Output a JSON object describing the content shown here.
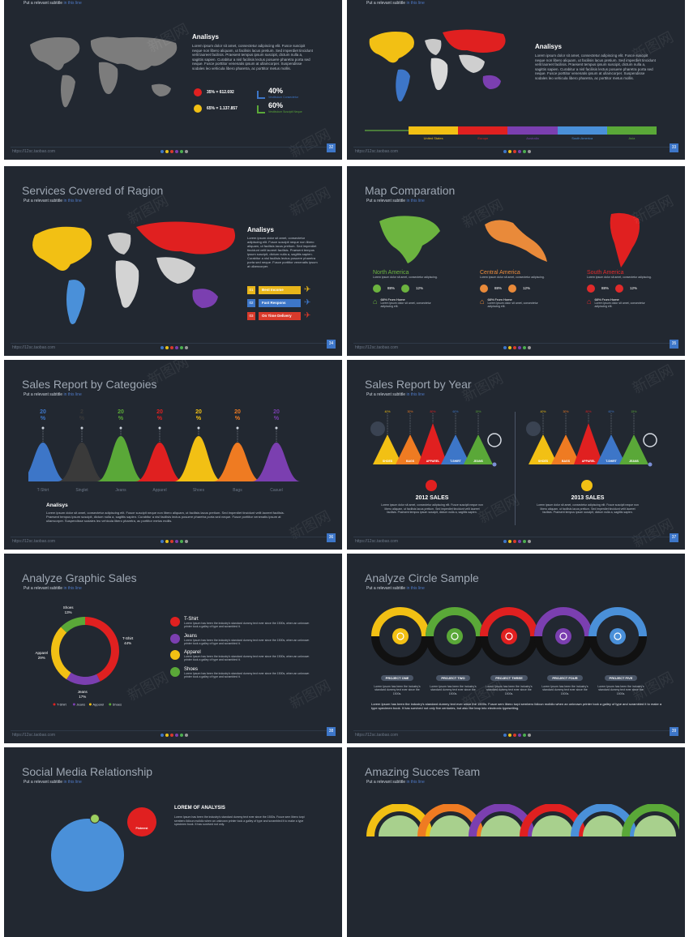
{
  "common": {
    "subtitle_prefix": "Put a relevant subtitle",
    "subtitle_suffix": "in this line",
    "footer_url": "https://12sc.taobao.com",
    "footer_dot_colors": [
      "#3d76c8",
      "#e8c21a",
      "#d93a2b",
      "#7b3fb0",
      "#4caf50",
      "#999999"
    ],
    "watermark": "新图网",
    "accent": "#3d76c8"
  },
  "slides": [
    {
      "page": "32",
      "analysis_title": "Analisys",
      "body": "Lorem ipsum dolor sit amet, consectetur adipiscing elit. Fusce suscipit neque non libero aliquam, ut facilisis lacus pretium. Sed imperdiet tincidunt velit laoreet facilisis. Praesent tempus ipsum suscipit, dictum nulla a, sagittis sapien. Curabitur a nisl facilisis lectus posuere pharetra porta sed neque. Fusce porttitor venenatis ipsum at ullamcorper. Suspendisse sodales leo vehicula libero pharetra, ac porttitor metus mollis.",
      "stat_a": "35% = 612.692",
      "stat_b": "65% = 1.137.857",
      "pct_a": "40%",
      "pct_a_label": "Vestibulum Consectetur",
      "pct_b": "60%",
      "pct_b_label": "Vestibulum Suscipit Neque"
    },
    {
      "page": "33",
      "analysis_title": "Analisys",
      "body": "Lorem ipsum dolor sit amet, consectetur adipiscing elit. Fusce suscipit neque non libero aliquam, ut facilisis lacus pretium. Sed imperdiet tincidunt velit laoreet facilisis. Praesent tempus ipsum suscipit, dictum nulla a, sagittis sapien. Curabitur a nisl facilisis lectus posuere pharetra porta sed neque. Fusce porttitor venenatis ipsum at ullamcorper. Suspendisse sodales leo vehicula libero pharetra, ac porttitor metus mollis.",
      "regions": [
        "United States",
        "Europe",
        "Australia",
        "South America",
        "Asia"
      ]
    },
    {
      "page": "34",
      "title": "Services Covered of Ragion",
      "analysis_title": "Analisys",
      "body": "Lorem ipsum dolor sit amet, consectetur adipiscing elit. Fusce suscipit neque non libero aliquam, ut facilisis lacus pretium. Sed imperdiet tincidunt velit laoreet facilisis. Praesent tempus ipsum suscipit, dictum nulla a, sagittis sapien. Curabitur a nisl facilisis lectus posuere pharetra porta sed neque. Fusce porttitor venenatis ipsum at ullamcorper.",
      "items": [
        {
          "num": "01",
          "label": "Best Income",
          "color": "#e8b51a"
        },
        {
          "num": "02",
          "label": "Fast Respons",
          "color": "#3d76c8"
        },
        {
          "num": "03",
          "label": "On Time Delivery",
          "color": "#d93a2b"
        }
      ]
    },
    {
      "page": "35",
      "title": "Map Comparation",
      "regions": [
        {
          "name": "North America",
          "color": "#6cb33f",
          "desc": "Lorem ipsum dolor sit amet, consectetur adipiscing.",
          "p1": "88%",
          "p2": "12%",
          "note": "68% From Home",
          "note_desc": "Lorem ipsum dolor sit amet, consectetur adipiscing elit."
        },
        {
          "name": "Central America",
          "color": "#e98a3a",
          "desc": "Lorem ipsum dolor sit amet, consectetur adipiscing.",
          "p1": "88%",
          "p2": "12%",
          "note": "68% From Home",
          "note_desc": "Lorem ipsum dolor sit amet, consectetur adipiscing elit."
        },
        {
          "name": "South America",
          "color": "#e02a2a",
          "desc": "Lorem ipsum dolor sit amet, consectetur adipiscing.",
          "p1": "88%",
          "p2": "12%",
          "note": "68% From Home",
          "note_desc": "Lorem ipsum dolor sit amet, consectetur adipiscing elit."
        }
      ]
    },
    {
      "page": "36",
      "title": "Sales Report by Categoies",
      "analysis_title": "Analisys",
      "body": "Lorem ipsum dolor sit amet, consectetur adipiscing elit. Fusce suscipit neque non libero aliquam, ut facilisis lacus pretium. Sed imperdiet tincidunt velit laoreet facilisis. Praesent tempus ipsum suscipit, dictum nulla a, sagittis sapien. Curabitur a nisl facilisis lectus posuere pharetra porta sed neque. Fusce porttitor venenatis ipsum at ullamcorper. Suspendisse sodales leo vehicula libero pharetra, ac porttitor metus mollis.",
      "categories": [
        {
          "name": "T-Shirt",
          "value": "20",
          "unit": "%",
          "color": "#3d76c8"
        },
        {
          "name": "Singlet",
          "value": "2",
          "unit": "%",
          "color": "#3a3a3a"
        },
        {
          "name": "Jeans",
          "value": "20",
          "unit": "%",
          "color": "#5aa838"
        },
        {
          "name": "Apparel",
          "value": "20",
          "unit": "%",
          "color": "#e02020"
        },
        {
          "name": "Shoes",
          "value": "20",
          "unit": "%",
          "color": "#f2c014"
        },
        {
          "name": "Bags",
          "value": "20",
          "unit": "%",
          "color": "#ef7b22"
        },
        {
          "name": "Casuel",
          "value": "20",
          "unit": "%",
          "color": "#7b3fb0"
        }
      ]
    },
    {
      "page": "37",
      "title": "Sales Report by Year",
      "years": [
        {
          "label": "2012 SALES",
          "dot": "#e02020",
          "body": "Lorem ipsum dolor sit amet, consectetur adipiscing elit. Fusce suscipit neque non libero aliquam, ut facilisis lacus pretium. Sed imperdiet tincidunt velit laoreet facilisis. Praesent tempus ipsum suscipit, dictum nulla a, sagittis sapien."
        },
        {
          "label": "2013 SALES",
          "dot": "#f2c014",
          "body": "Lorem ipsum dolor sit amet, consectetur adipiscing elit. Fusce suscipit neque non libero aliquam, ut facilisis lacus pretium. Sed imperdiet tincidunt velit laoreet facilisis. Praesent tempus ipsum suscipit, dictum nulla a, sagittis sapien."
        }
      ],
      "peaks": [
        {
          "name": "SHOES",
          "pct": "40%",
          "color": "#f2c014"
        },
        {
          "name": "BAGS",
          "pct": "30%",
          "color": "#ef7b22"
        },
        {
          "name": "APPAREL",
          "pct": "80%",
          "color": "#e02020"
        },
        {
          "name": "T-SHIRT",
          "pct": "60%",
          "color": "#3d76c8"
        },
        {
          "name": "JEANS",
          "pct": "15%",
          "color": "#5aa838"
        }
      ]
    },
    {
      "page": "38",
      "title": "Analyze Graphic Sales",
      "chart_data": {
        "type": "pie",
        "categories": [
          "T-Shirt",
          "Jeans",
          "Apparel",
          "Shoes"
        ],
        "values": [
          44,
          17,
          29,
          13
        ],
        "value_labels": [
          "44%",
          "17%",
          "29%",
          "13%"
        ],
        "colors": [
          "#e02020",
          "#7b3fb0",
          "#f2c014",
          "#5aa838"
        ]
      },
      "legend": [
        {
          "label": "T-Shirt",
          "color": "#e02020",
          "desc": "Lorem Ipsum has been the industry's standard dummy text ever since the 1500s, when an unknown printer took a galley of type and scrambled it."
        },
        {
          "label": "Jeans",
          "color": "#7b3fb0",
          "desc": "Lorem Ipsum has been the industry's standard dummy text ever since the 1500s, when an unknown printer took a galley of type and scrambled it."
        },
        {
          "label": "Apparel",
          "color": "#f2c014",
          "desc": "Lorem Ipsum has been the industry's standard dummy text ever since the 1500s, when an unknown printer took a galley of type and scrambled it."
        },
        {
          "label": "Shoes",
          "color": "#5aa838",
          "desc": "Lorem Ipsum has been the industry's standard dummy text ever since the 1500s, when an unknown printer took a galley of type and scrambled it."
        }
      ]
    },
    {
      "page": "39",
      "title": "Analyze Circle Sample",
      "projects": [
        {
          "label": "PROJECT ONE",
          "color": "#f2c014",
          "desc": "Lorem Ipsum has been the industry's standard dummy text ever since the 1500s."
        },
        {
          "label": "PROJECT TWO",
          "color": "#5aa838",
          "desc": "Lorem Ipsum has been the industry's standard dummy text ever since the 1500s."
        },
        {
          "label": "PROJECT THREE",
          "color": "#e02020",
          "desc": "Lorem Ipsum has been the industry's standard dummy text ever since the 1500s."
        },
        {
          "label": "PROJECT FOUR",
          "color": "#7b3fb0",
          "desc": "Lorem Ipsum has been the industry's standard dummy text ever since the 1500s."
        },
        {
          "label": "PROJECT FIVE",
          "color": "#4a90d9",
          "desc": "Lorem Ipsum has been the industry's standard dummy text ever since the 1500s."
        }
      ],
      "summary": "Lorem Ipsum has been the industry's standard dummy text ever since the 1500s. Fusce sem libero turpi sembero lidicun molidio when an unknown printer took a galley of type and scrambled it to make a type specimen book. It has survived not only five centuries, but also the leap into electronic typesetting."
    },
    {
      "title": "Social Media Relationship",
      "header": "LOREM OF ANALYSIS",
      "body": "Lorem Ipsum has been the industry's standard dummy text ever since the 1500s. Fusce sem libero turpi sembero lidicun molidio when an unknown printer took a galley of type and scrambled it to make a type specimen book. It has survived not only.",
      "badge": "Pinterest"
    },
    {
      "title": "Amazing Succes Team"
    }
  ]
}
